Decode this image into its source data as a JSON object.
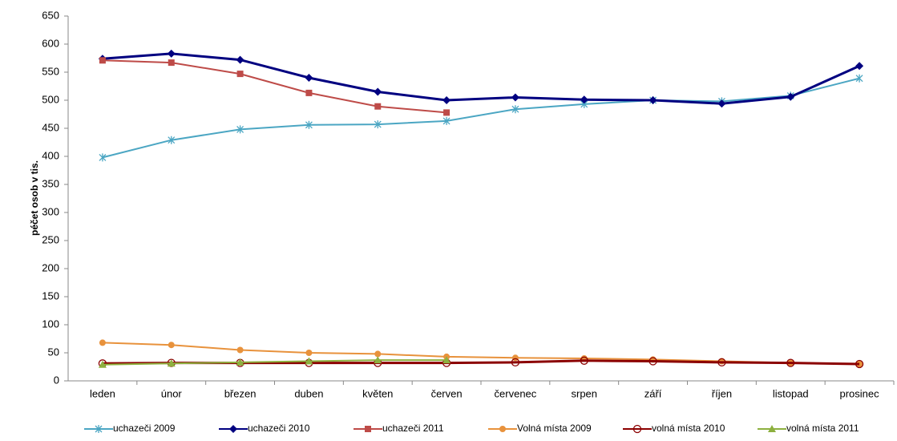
{
  "chart_data": {
    "type": "line",
    "ylabel": "péčet osob v tis.",
    "categories": [
      "leden",
      "únor",
      "březen",
      "duben",
      "květen",
      "červen",
      "červenec",
      "srpen",
      "září",
      "říjen",
      "listopad",
      "prosinec"
    ],
    "ylim": [
      0,
      650
    ],
    "yticks": [
      0,
      50,
      100,
      150,
      200,
      250,
      300,
      350,
      400,
      450,
      500,
      550,
      600,
      650
    ],
    "grid": false,
    "legend": "bottom",
    "series": [
      {
        "name": "uchazeči 2009",
        "color": "#4ba6c3",
        "marker": "asterisk",
        "values": [
          398,
          429,
          448,
          456,
          457,
          463,
          484,
          493,
          500,
          498,
          508,
          539
        ]
      },
      {
        "name": "uchazeči 2010",
        "color": "#000080",
        "marker": "diamond",
        "values": [
          574,
          583,
          572,
          540,
          515,
          500,
          505,
          501,
          500,
          494,
          506,
          561
        ]
      },
      {
        "name": "uchazeči 2011",
        "color": "#be4b48",
        "marker": "square",
        "values": [
          571,
          567,
          547,
          513,
          489,
          478,
          null,
          null,
          null,
          null,
          null,
          null
        ]
      },
      {
        "name": "Volná místa 2009",
        "color": "#e8923c",
        "marker": "circle",
        "values": [
          68,
          64,
          55,
          50,
          48,
          43,
          41,
          40,
          38,
          35,
          32,
          30
        ]
      },
      {
        "name": "volná místa 2010",
        "color": "#8b0000",
        "marker": "ring",
        "values": [
          31,
          32,
          32,
          32,
          32,
          32,
          33,
          36,
          35,
          33,
          32,
          30
        ]
      },
      {
        "name": "volná místa 2011",
        "color": "#8db03f",
        "marker": "triangle",
        "values": [
          29,
          31,
          33,
          35,
          37,
          37,
          null,
          null,
          null,
          null,
          null,
          null
        ]
      }
    ]
  }
}
